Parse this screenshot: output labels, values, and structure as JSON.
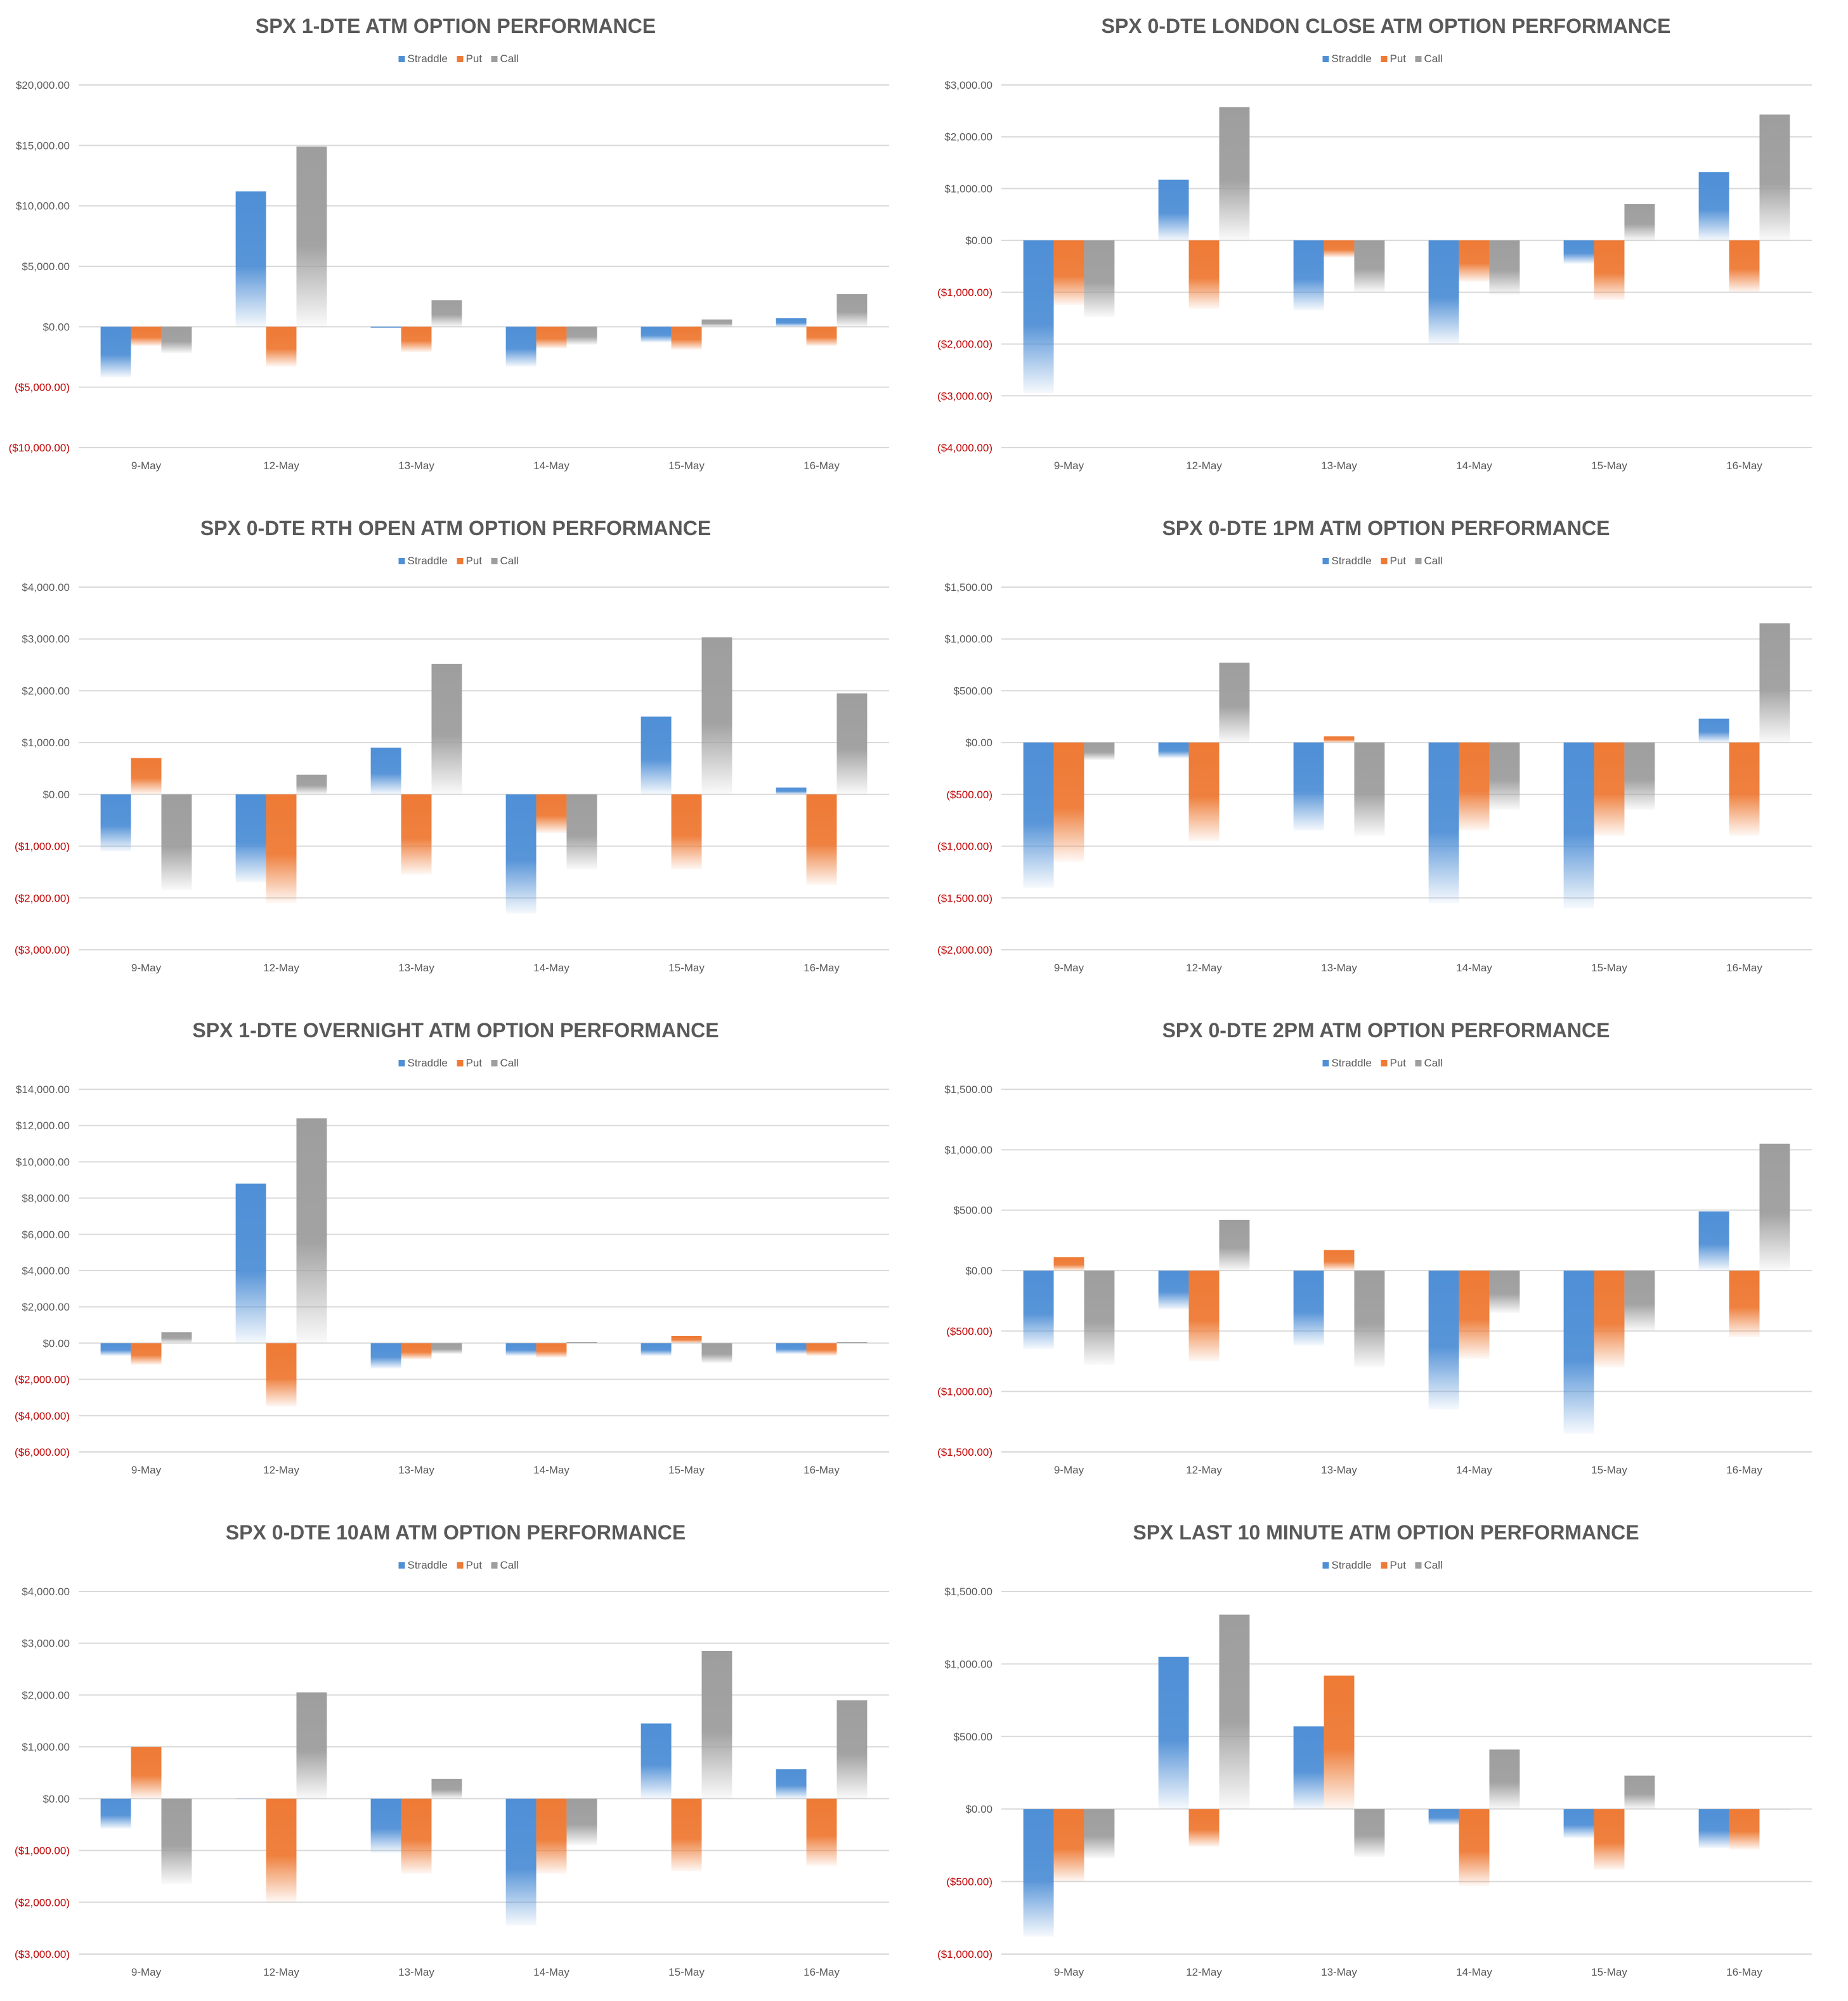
{
  "colors": {
    "straddle": "#4f8fd6",
    "put": "#ee7a35",
    "call": "#9e9e9e",
    "gridline": "#d9d9d9",
    "negative_label": "#c00000",
    "text": "#595959"
  },
  "chart_data": [
    {
      "type": "bar",
      "title": "SPX 1-DTE ATM OPTION PERFORMANCE",
      "categories": [
        "9-May",
        "12-May",
        "13-May",
        "14-May",
        "15-May",
        "16-May"
      ],
      "series": [
        {
          "name": "Straddle",
          "values": [
            -4200,
            11200,
            -100,
            -3300,
            -1300,
            700
          ]
        },
        {
          "name": "Put",
          "values": [
            -1600,
            -3300,
            -2100,
            -1800,
            -1900,
            -1600
          ]
        },
        {
          "name": "Call",
          "values": [
            -2200,
            14900,
            2200,
            -1500,
            600,
            2700
          ]
        }
      ],
      "yticks": [
        "$20,000.00",
        "$15,000.00",
        "$10,000.00",
        "$5,000.00",
        "$0.00",
        "($5,000.00)",
        "($10,000.00)"
      ],
      "ylim": [
        -10000,
        20000
      ],
      "grid": true,
      "legend": "top-center"
    },
    {
      "type": "bar",
      "title": "SPX 0-DTE  LONDON CLOSE ATM OPTION PERFORMANCE",
      "categories": [
        "9-May",
        "12-May",
        "13-May",
        "14-May",
        "15-May",
        "16-May"
      ],
      "series": [
        {
          "name": "Straddle",
          "values": [
            -2950,
            1170,
            -1350,
            -2000,
            -450,
            1320
          ]
        },
        {
          "name": "Put",
          "values": [
            -1250,
            -1320,
            -330,
            -800,
            -1150,
            -1000
          ]
        },
        {
          "name": "Call",
          "values": [
            -1480,
            2570,
            -1000,
            -1050,
            700,
            2430
          ]
        }
      ],
      "yticks": [
        "$3,000.00",
        "$2,000.00",
        "$1,000.00",
        "$0.00",
        "($1,000.00)",
        "($2,000.00)",
        "($3,000.00)",
        "($4,000.00)"
      ],
      "ylim": [
        -4000,
        3000
      ],
      "grid": true,
      "legend": "top-center"
    },
    {
      "type": "bar",
      "title": "SPX 0-DTE RTH OPEN ATM OPTION PERFORMANCE",
      "categories": [
        "9-May",
        "12-May",
        "13-May",
        "14-May",
        "15-May",
        "16-May"
      ],
      "series": [
        {
          "name": "Straddle",
          "values": [
            -1100,
            -1700,
            900,
            -2300,
            1500,
            130
          ]
        },
        {
          "name": "Put",
          "values": [
            700,
            -2100,
            -1550,
            -750,
            -1450,
            -1750
          ]
        },
        {
          "name": "Call",
          "values": [
            -1850,
            380,
            2520,
            -1450,
            3030,
            1950
          ]
        }
      ],
      "yticks": [
        "$4,000.00",
        "$3,000.00",
        "$2,000.00",
        "$1,000.00",
        "$0.00",
        "($1,000.00)",
        "($2,000.00)",
        "($3,000.00)"
      ],
      "ylim": [
        -3000,
        4000
      ],
      "grid": true,
      "legend": "top-center"
    },
    {
      "type": "bar",
      "title": "SPX 0-DTE 1PM ATM OPTION PERFORMANCE",
      "categories": [
        "9-May",
        "12-May",
        "13-May",
        "14-May",
        "15-May",
        "16-May"
      ],
      "series": [
        {
          "name": "Straddle",
          "values": [
            -1400,
            -150,
            -850,
            -1550,
            -1600,
            230
          ]
        },
        {
          "name": "Put",
          "values": [
            -1150,
            -950,
            60,
            -850,
            -900,
            -900
          ]
        },
        {
          "name": "Call",
          "values": [
            -170,
            770,
            -900,
            -650,
            -650,
            1150
          ]
        }
      ],
      "yticks": [
        "$1,500.00",
        "$1,000.00",
        "$500.00",
        "$0.00",
        "($500.00)",
        "($1,000.00)",
        "($1,500.00)",
        "($2,000.00)"
      ],
      "ylim": [
        -2000,
        1500
      ],
      "grid": true,
      "legend": "top-center"
    },
    {
      "type": "bar",
      "title": "SPX 1-DTE OVERNIGHT ATM OPTION PERFORMANCE",
      "categories": [
        "9-May",
        "12-May",
        "13-May",
        "14-May",
        "15-May",
        "16-May"
      ],
      "series": [
        {
          "name": "Straddle",
          "values": [
            -700,
            8800,
            -1400,
            -700,
            -700,
            -600
          ]
        },
        {
          "name": "Put",
          "values": [
            -1200,
            -3500,
            -900,
            -800,
            400,
            -700
          ]
        },
        {
          "name": "Call",
          "values": [
            600,
            12400,
            -600,
            50,
            -1100,
            50
          ]
        }
      ],
      "yticks": [
        "$14,000.00",
        "$12,000.00",
        "$10,000.00",
        "$8,000.00",
        "$6,000.00",
        "$4,000.00",
        "$2,000.00",
        "$0.00",
        "($2,000.00)",
        "($4,000.00)",
        "($6,000.00)"
      ],
      "ylim": [
        -6000,
        14000
      ],
      "grid": true,
      "legend": "top-center"
    },
    {
      "type": "bar",
      "title": "SPX 0-DTE 2PM ATM OPTION PERFORMANCE",
      "categories": [
        "9-May",
        "12-May",
        "13-May",
        "14-May",
        "15-May",
        "16-May"
      ],
      "series": [
        {
          "name": "Straddle",
          "values": [
            -650,
            -320,
            -620,
            -1150,
            -1350,
            490
          ]
        },
        {
          "name": "Put",
          "values": [
            110,
            -750,
            170,
            -730,
            -800,
            -550
          ]
        },
        {
          "name": "Call",
          "values": [
            -780,
            420,
            -800,
            -350,
            -500,
            1050
          ]
        }
      ],
      "yticks": [
        "$1,500.00",
        "$1,000.00",
        "$500.00",
        "$0.00",
        "($500.00)",
        "($1,000.00)",
        "($1,500.00)"
      ],
      "ylim": [
        -1500,
        1500
      ],
      "grid": true,
      "legend": "top-center"
    },
    {
      "type": "bar",
      "title": "SPX 0-DTE 10AM ATM OPTION PERFORMANCE",
      "categories": [
        "9-May",
        "12-May",
        "13-May",
        "14-May",
        "15-May",
        "16-May"
      ],
      "series": [
        {
          "name": "Straddle",
          "values": [
            -580,
            0,
            -1050,
            -2450,
            1450,
            570
          ]
        },
        {
          "name": "Put",
          "values": [
            1000,
            -2000,
            -1450,
            -1450,
            -1400,
            -1300
          ]
        },
        {
          "name": "Call",
          "values": [
            -1650,
            2050,
            380,
            -900,
            2850,
            1900
          ]
        }
      ],
      "yticks": [
        "$4,000.00",
        "$3,000.00",
        "$2,000.00",
        "$1,000.00",
        "$0.00",
        "($1,000.00)",
        "($2,000.00)",
        "($3,000.00)"
      ],
      "ylim": [
        -3000,
        4000
      ],
      "grid": true,
      "legend": "top-center"
    },
    {
      "type": "bar",
      "title": "SPX LAST 10 MINUTE ATM OPTION PERFORMANCE",
      "categories": [
        "9-May",
        "12-May",
        "13-May",
        "14-May",
        "15-May",
        "16-May"
      ],
      "series": [
        {
          "name": "Straddle",
          "values": [
            -880,
            1050,
            570,
            -110,
            -200,
            -270
          ]
        },
        {
          "name": "Put",
          "values": [
            -500,
            -260,
            920,
            -530,
            -420,
            -280
          ]
        },
        {
          "name": "Call",
          "values": [
            -340,
            1340,
            -330,
            410,
            230,
            0
          ]
        }
      ],
      "yticks": [
        "$1,500.00",
        "$1,000.00",
        "$500.00",
        "$0.00",
        "($500.00)",
        "($1,000.00)"
      ],
      "ylim": [
        -1000,
        1500
      ],
      "grid": true,
      "legend": "top-center"
    }
  ]
}
